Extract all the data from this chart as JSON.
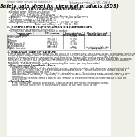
{
  "bg_color": "#f0efe8",
  "paper_color": "#ffffff",
  "header_left": "Product name: Lithium Ion Battery Cell",
  "header_right_line1": "Substance number: Q62702-Z2037",
  "header_right_line2": "Established / Revision: Dec.7,2010",
  "title": "Safety data sheet for chemical products (SDS)",
  "section1_title": "1. PRODUCT AND COMPANY IDENTIFICATION",
  "section1_lines": [
    "  • Product name: Lithium Ion Battery Cell",
    "  • Product code: Cylindrical-type cell",
    "      (IHR18650U, IHR18650L, IHR18650A)",
    "  • Company name:   Sanyo Electric Co., Ltd., Mobile Energy Company",
    "  • Address:         2001 Kamimaruko, Sumoto City, Hyogo, Japan",
    "  • Telephone number :  +81-799-26-4111",
    "  • Fax number:  +81-799-26-4120",
    "  • Emergency telephone number (daytime): +81-799-26-3962",
    "                                   (Night and holiday): +81-799-26-4101"
  ],
  "section2_title": "2. COMPOSITION / INFORMATION ON INGREDIENTS",
  "section2_line1": "  • Substance or preparation: Preparation",
  "section2_line2": "  • Information about the chemical nature of product:",
  "table_col_headers1": [
    "Common name /",
    "CAS number",
    "Concentration /",
    "Classification and"
  ],
  "table_col_headers2": [
    "Synonym",
    "",
    "Concentration range",
    "hazard labeling"
  ],
  "table_rows": [
    [
      "Lithium cobalt oxide",
      "-",
      "30-60%",
      "-"
    ],
    [
      "(LiMn-CoMnO4)",
      "",
      "",
      ""
    ],
    [
      "Iron",
      "7439-89-6",
      "10-30%",
      "-"
    ],
    [
      "Aluminum",
      "7429-90-5",
      "2-8%",
      "-"
    ],
    [
      "Graphite",
      "",
      "",
      ""
    ],
    [
      "(Flaky graphite-1)",
      "77782-42-5",
      "10-25%",
      "-"
    ],
    [
      "(AI-Mo graphite-1)",
      "7782-44-2",
      "",
      ""
    ],
    [
      "Copper",
      "7440-50-8",
      "5-15%",
      "Sensitization of the skin\ngroup Ra 2"
    ],
    [
      "Organic electrolyte",
      "-",
      "10-20%",
      "Inflammatory liquid"
    ]
  ],
  "section3_title": "3. HAZARDS IDENTIFICATION",
  "section3_para1": [
    "For the battery cell, chemical materials are stored in a hermetically sealed metal case, designed to withstand",
    "temperatures and pressures/vibrations/shocks during normal use. As a result, during normal use, there is no",
    "physical danger of ignition or explosion and there is no danger of hazardous materials leakage.",
    "However, if exposed to a fire added mechanical shocks, decompose, similar alarms without any measures,",
    "the gas release vent can be operated. The battery cell case will be breached of fire-patterns, hazardous",
    "materials may be released.",
    "Moreover, if heated strongly by the surrounding fire, some gas may be emitted."
  ],
  "section3_bullet1": "• Most important hazard and effects:",
  "section3_human": "Human health effects:",
  "section3_inhalation": "Inhalation: The release of the electrolyte has an anesthesia action and stimulates in respiratory tract.",
  "section3_skin1": "Skin contact: The release of the electrolyte stimulates a skin. The electrolyte skin contact causes a",
  "section3_skin2": "sore and stimulation on the skin.",
  "section3_eye1": "Eye contact: The release of the electrolyte stimulates eyes. The electrolyte eye contact causes a sore",
  "section3_eye2": "and stimulation on the eye. Especially, a substance that causes a strong inflammation of the eye is",
  "section3_eye3": "contained.",
  "section3_env1": "Environmental effects: Since a battery cell remains in the environment, do not throw out it into the",
  "section3_env2": "environment.",
  "section3_bullet2": "• Specific hazards:",
  "section3_spec1": "If the electrolyte contacts with water, it will generate detrimental hydrogen fluoride.",
  "section3_spec2": "Since the said electrolyte is inflammatory liquid, do not bring close to fire."
}
